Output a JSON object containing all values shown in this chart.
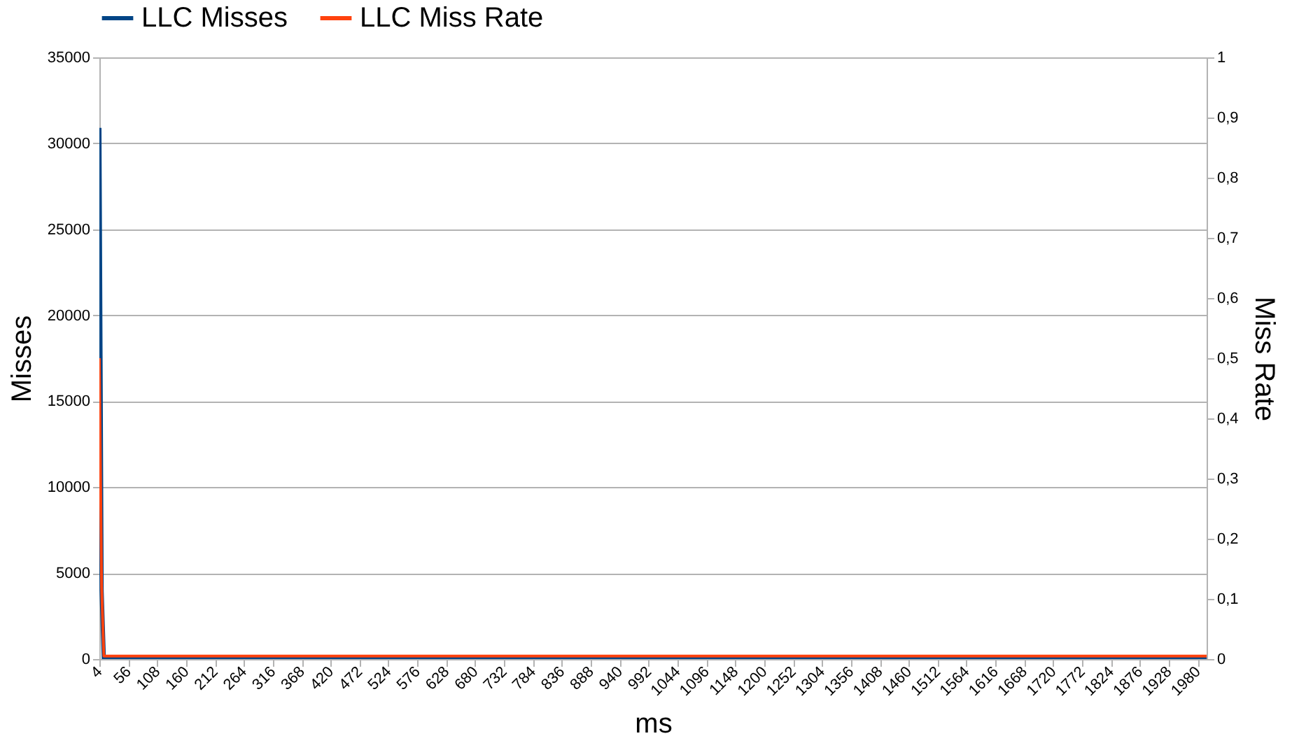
{
  "chart_data": {
    "type": "line",
    "xlabel": "ms",
    "ylabel": "Misses",
    "y2label": "Miss Rate",
    "x": [
      4,
      8,
      12,
      1996
    ],
    "series": [
      {
        "name": "LLC Misses",
        "color": "#004586",
        "values": [
          30900,
          4000,
          0,
          0
        ]
      },
      {
        "name": "LLC Miss Rate",
        "color": "#ff420e",
        "axis": "y2",
        "values": [
          0.5,
          0.12,
          0.005,
          0.005
        ]
      }
    ],
    "xlim": [
      4,
      1996
    ],
    "xticks": [
      4,
      56,
      108,
      160,
      212,
      264,
      316,
      368,
      420,
      472,
      524,
      576,
      628,
      680,
      732,
      784,
      836,
      888,
      940,
      992,
      1044,
      1096,
      1148,
      1200,
      1252,
      1304,
      1356,
      1408,
      1460,
      1512,
      1564,
      1616,
      1668,
      1720,
      1772,
      1824,
      1876,
      1928,
      1980
    ],
    "ylim": [
      0,
      35000
    ],
    "yticks": [
      0,
      5000,
      10000,
      15000,
      20000,
      25000,
      30000,
      35000
    ],
    "y2lim": [
      0,
      1
    ],
    "y2ticks": [
      0,
      {
        "value": 0.1,
        "label": "0,1"
      },
      {
        "value": 0.2,
        "label": "0,2"
      },
      {
        "value": 0.3,
        "label": "0,3"
      },
      {
        "value": 0.4,
        "label": "0,4"
      },
      {
        "value": 0.5,
        "label": "0,5"
      },
      {
        "value": 0.6,
        "label": "0,6"
      },
      {
        "value": 0.7,
        "label": "0,7"
      },
      {
        "value": 0.8,
        "label": "0,8"
      },
      {
        "value": 0.9,
        "label": "0,9"
      },
      1
    ],
    "grid": "y",
    "legend": "top",
    "marker": "none",
    "line_style": "solid"
  }
}
